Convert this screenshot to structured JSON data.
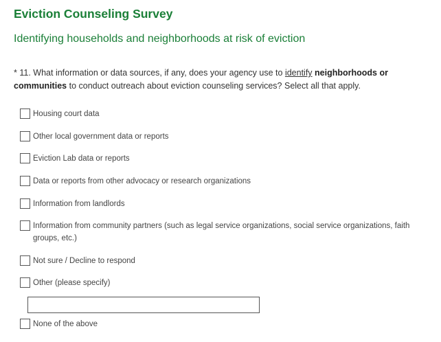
{
  "header": {
    "title": "Eviction Counseling Survey",
    "subtitle": "Identifying households and neighborhoods at risk of eviction"
  },
  "question": {
    "marker": "*",
    "number": "11.",
    "text_before": "What information or data sources, if any, does your agency use to",
    "underlined": "identify",
    "bold": "neighborhoods or communities",
    "text_after": "to conduct outreach about eviction counseling services? Select all that apply."
  },
  "options": [
    "Housing court data",
    "Other local government data or reports",
    "Eviction Lab data or reports",
    "Data or reports from other advocacy or research organizations",
    "Information from landlords",
    "Information from community partners (such as legal service organizations, social service organizations, faith groups, etc.)",
    "Not sure / Decline to respond",
    "Other (please specify)"
  ],
  "none_option": "None of the above"
}
